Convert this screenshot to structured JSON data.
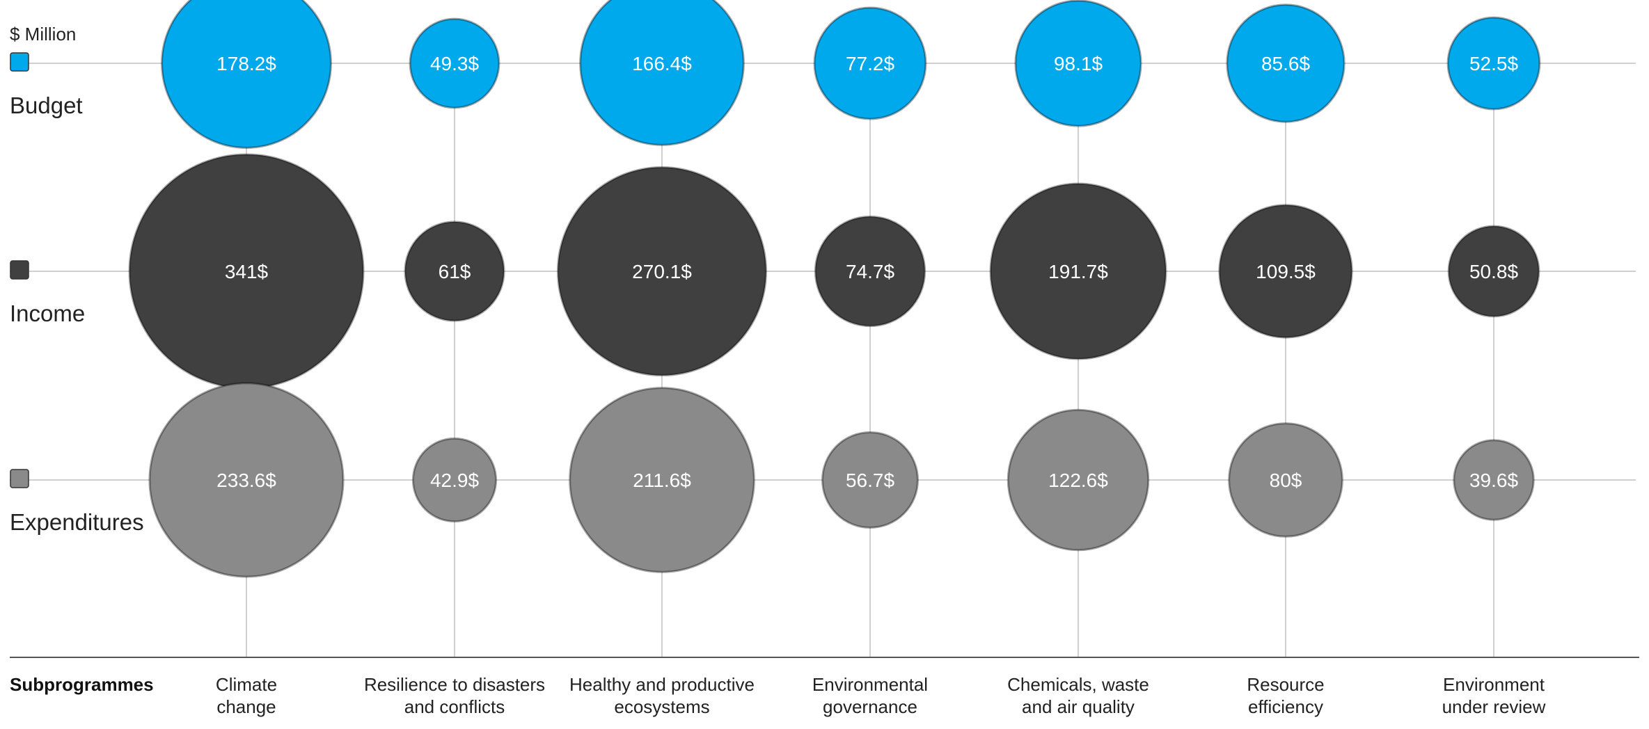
{
  "chart_data": {
    "type": "bubble",
    "unit_label": "$ Million",
    "x_title": "Subprogrammes",
    "categories": [
      [
        "Climate",
        "change"
      ],
      [
        "Resilience to disasters",
        "and conflicts"
      ],
      [
        "Healthy and productive",
        "ecosystems"
      ],
      [
        "Environmental",
        "governance"
      ],
      [
        "Chemicals, waste",
        "and air quality"
      ],
      [
        "Resource",
        "efficiency"
      ],
      [
        "Environment",
        "under review"
      ]
    ],
    "series": [
      {
        "name": "Budget",
        "color": "#00a8ec",
        "values": [
          178.2,
          49.3,
          166.4,
          77.2,
          98.1,
          85.6,
          52.5
        ]
      },
      {
        "name": "Income",
        "color": "#404040",
        "values": [
          341,
          61,
          270.1,
          74.7,
          191.7,
          109.5,
          50.8
        ]
      },
      {
        "name": "Expenditures",
        "color": "#8a8a8a",
        "values": [
          233.6,
          42.9,
          211.6,
          56.7,
          122.6,
          80,
          39.6
        ]
      }
    ],
    "value_suffix": "$",
    "grid": true
  }
}
